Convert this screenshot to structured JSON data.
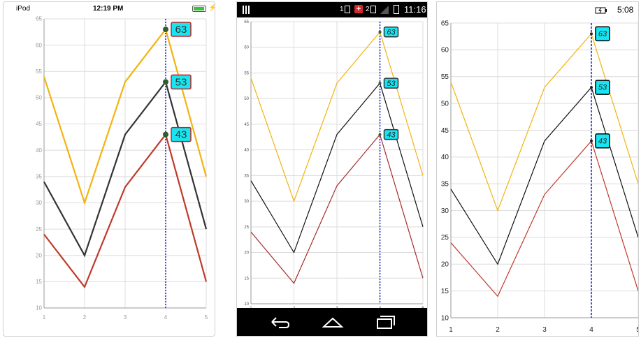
{
  "screens": [
    {
      "platform": "ios",
      "status": {
        "carrier": "iPod",
        "time": "12:19 PM"
      },
      "style": {
        "tooltip_fill": "#17e6f2",
        "tooltip_border": "#c32020",
        "tooltip_text": "#333333",
        "tooltip_italic": false,
        "series_colors": [
          "#f3b311",
          "#333333",
          "#c0392b"
        ],
        "trackline_color": "#1f2bd6",
        "marker_color": "#2e5d2e"
      }
    },
    {
      "platform": "android",
      "status": {
        "sim1": "1",
        "sim2": "2",
        "time": "11:16"
      },
      "style": {
        "tooltip_fill": "#17e6f2",
        "tooltip_border": "#333333",
        "tooltip_text": "#222222",
        "tooltip_italic": true,
        "series_colors": [
          "#f3b311",
          "#111111",
          "#a52a2a"
        ],
        "trackline_color": "#1f2bd6",
        "marker_color": "#2e5d2e"
      }
    },
    {
      "platform": "windows",
      "status": {
        "time": "5:08"
      },
      "style": {
        "tooltip_fill": "#17e6f2",
        "tooltip_border": "#000000",
        "tooltip_text": "#222222",
        "tooltip_italic": true,
        "series_colors": [
          "#f3b311",
          "#111111",
          "#c0392b"
        ],
        "trackline_color": "#1f2bd6",
        "marker_color": "#222222"
      }
    }
  ],
  "chart_data": {
    "type": "line",
    "x": [
      1,
      2,
      3,
      4,
      5
    ],
    "series": [
      {
        "values": [
          54,
          30,
          53,
          63,
          35
        ]
      },
      {
        "values": [
          34,
          20,
          43,
          53,
          25
        ]
      },
      {
        "values": [
          24,
          14,
          33,
          43,
          15
        ]
      }
    ],
    "xlim": [
      1,
      5
    ],
    "ylim": [
      10,
      65
    ],
    "y_ticks": [
      10,
      15,
      20,
      25,
      30,
      35,
      40,
      45,
      50,
      55,
      60,
      65
    ],
    "x_ticks": [
      1,
      2,
      3,
      4,
      5
    ],
    "grid": true,
    "trackball_x": 4,
    "tooltips": [
      "63",
      "53",
      "43"
    ]
  }
}
